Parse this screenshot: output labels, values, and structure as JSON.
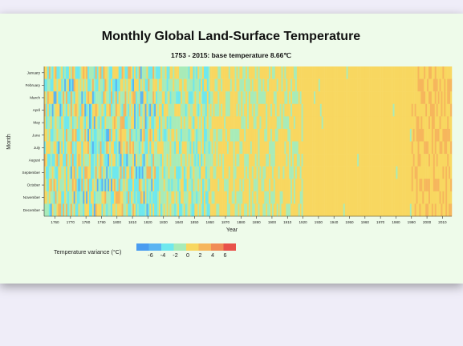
{
  "chart_data": {
    "type": "heatmap",
    "title": "Monthly Global Land-Surface Temperature",
    "subtitle": "1753 - 2015: base temperature 8.66℃",
    "xlabel": "Year",
    "ylabel": "Month",
    "base_temperature": 8.66,
    "year_range": [
      1753,
      2015
    ],
    "x_ticks": [
      1760,
      1770,
      1780,
      1790,
      1800,
      1810,
      1820,
      1830,
      1840,
      1850,
      1860,
      1870,
      1880,
      1890,
      1900,
      1910,
      1920,
      1930,
      1940,
      1950,
      1960,
      1970,
      1980,
      1990,
      2000,
      2010
    ],
    "months": [
      "January",
      "February",
      "March",
      "April",
      "May",
      "June",
      "July",
      "August",
      "September",
      "October",
      "November",
      "December"
    ],
    "legend": {
      "title": "Temperature variance (°C)",
      "ticks": [
        "-6",
        "-4",
        "-2",
        "0",
        "2",
        "4",
        "6"
      ],
      "colors": [
        "#4a9cf0",
        "#5ab4f2",
        "#6ee8ee",
        "#a8ebb8",
        "#f8d760",
        "#f6b65c",
        "#f18c56",
        "#e8524a"
      ],
      "domain": [
        -7,
        7
      ]
    },
    "variance_pattern": {
      "description": "per-year average variance trend, cells vary by month",
      "segments": [
        {
          "from": 1753,
          "to": 1825,
          "mean": -0.7,
          "spread": 2.0
        },
        {
          "from": 1825,
          "to": 1860,
          "mean": -0.6,
          "spread": 1.2
        },
        {
          "from": 1860,
          "to": 1920,
          "mean": 0.2,
          "spread": 0.45
        },
        {
          "from": 1920,
          "to": 1990,
          "mean": 0.55,
          "spread": 0.35
        },
        {
          "from": 1990,
          "to": 2016,
          "mean": 1.5,
          "spread": 0.8
        }
      ]
    }
  }
}
